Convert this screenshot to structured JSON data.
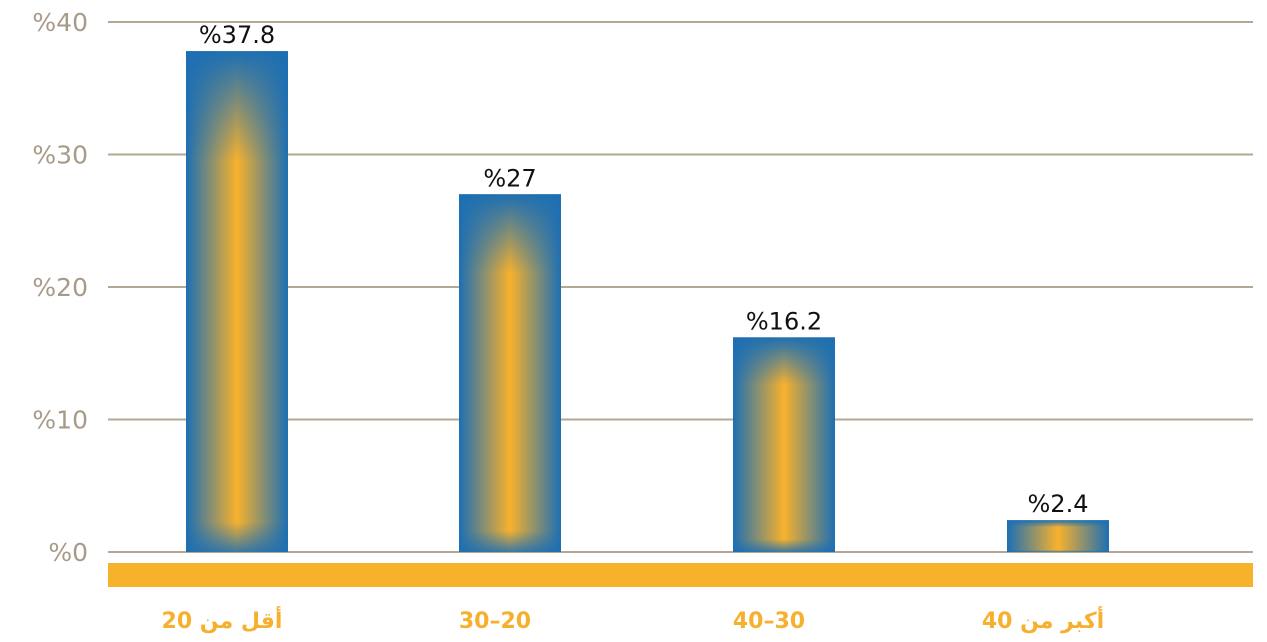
{
  "chart_data": {
    "type": "bar",
    "categories": [
      "أقل من 20",
      "20–30",
      "30–40",
      "أكبر من 40"
    ],
    "values": [
      37.8,
      27,
      16.2,
      2.4
    ],
    "value_labels": [
      "%37.8",
      "%27",
      "%16.2",
      "%2.4"
    ],
    "y_ticks": [
      0,
      10,
      20,
      30,
      40
    ],
    "y_tick_labels": [
      "%0",
      "%10",
      "%20",
      "%30",
      "%40"
    ],
    "ylim": [
      0,
      40
    ],
    "grid": true,
    "colors": {
      "bar_edge": "#1d6fb3",
      "bar_core": "#f8b12c",
      "baseline_band": "#f7b22b",
      "grid": "#b3a892",
      "tick_text": "#a89a88",
      "category_text": "#f6b02d",
      "value_text": "#111111"
    }
  }
}
